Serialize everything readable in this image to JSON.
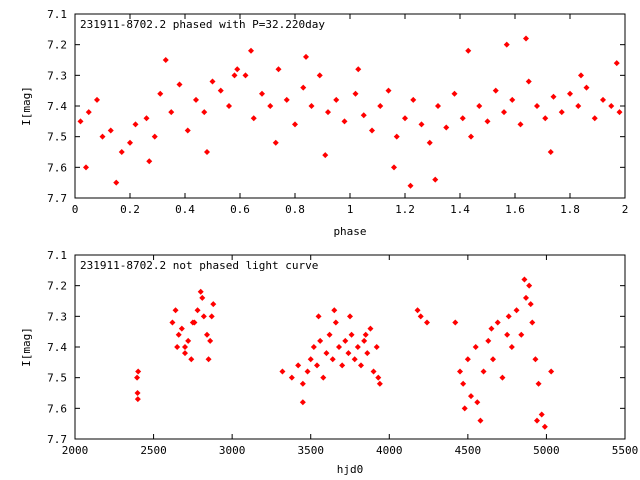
{
  "chart_data": [
    {
      "type": "scatter",
      "title": "231911-8702.2 phased with P=32.220day",
      "xlabel": "phase",
      "ylabel": "I[mag]",
      "xlim": [
        0,
        2
      ],
      "ylim": [
        7.1,
        7.7
      ],
      "y_inverted": true,
      "xticks": [
        0,
        0.2,
        0.4,
        0.6,
        0.8,
        1,
        1.2,
        1.4,
        1.6,
        1.8,
        2
      ],
      "xtick_labels": [
        "0",
        "0.2",
        "0.4",
        "0.6",
        "0.8",
        "1",
        "1.2",
        "1.4",
        "1.6",
        "1.8",
        "2"
      ],
      "yticks": [
        7.1,
        7.2,
        7.3,
        7.4,
        7.5,
        7.6,
        7.7
      ],
      "ytick_labels": [
        "7.1",
        "7.2",
        "7.3",
        "7.4",
        "7.5",
        "7.6",
        "7.7"
      ],
      "grid": false,
      "marker_color": "#ff0000",
      "series": [
        {
          "x": [
            0.02,
            0.05,
            0.08,
            0.1,
            0.13,
            0.17,
            0.2,
            0.22,
            0.26,
            0.29,
            0.31,
            0.35,
            0.38,
            0.41,
            0.44,
            0.47,
            0.5,
            0.53,
            0.56,
            0.59,
            0.62,
            0.65,
            0.68,
            0.71,
            0.74,
            0.77,
            0.8,
            0.83,
            0.86,
            0.89,
            0.92,
            0.95,
            0.98,
            1.02,
            1.05,
            1.08,
            1.11,
            1.14,
            1.17,
            1.2,
            1.23,
            1.26,
            1.29,
            1.32,
            1.35,
            1.38,
            1.41,
            1.44,
            1.47,
            1.5,
            1.53,
            1.56,
            1.59,
            1.62,
            1.65,
            1.68,
            1.71,
            1.74,
            1.77,
            1.8,
            1.83,
            1.86,
            1.89,
            1.92,
            1.95,
            1.98,
            0.04,
            0.15,
            0.27,
            0.33,
            0.48,
            0.58,
            0.64,
            0.73,
            0.84,
            0.91,
            1.03,
            1.16,
            1.22,
            1.31,
            1.43,
            1.57,
            1.64,
            1.73,
            1.84,
            1.97
          ],
          "y": [
            7.45,
            7.42,
            7.38,
            7.5,
            7.48,
            7.55,
            7.52,
            7.46,
            7.44,
            7.5,
            7.36,
            7.42,
            7.33,
            7.48,
            7.38,
            7.42,
            7.32,
            7.35,
            7.4,
            7.28,
            7.3,
            7.44,
            7.36,
            7.4,
            7.28,
            7.38,
            7.46,
            7.34,
            7.4,
            7.3,
            7.42,
            7.38,
            7.45,
            7.36,
            7.43,
            7.48,
            7.4,
            7.35,
            7.5,
            7.44,
            7.38,
            7.46,
            7.52,
            7.4,
            7.47,
            7.36,
            7.44,
            7.5,
            7.4,
            7.45,
            7.35,
            7.42,
            7.38,
            7.46,
            7.32,
            7.4,
            7.44,
            7.37,
            7.42,
            7.36,
            7.4,
            7.34,
            7.44,
            7.38,
            7.4,
            7.42,
            7.6,
            7.65,
            7.58,
            7.25,
            7.55,
            7.3,
            7.22,
            7.52,
            7.24,
            7.56,
            7.28,
            7.6,
            7.66,
            7.64,
            7.22,
            7.2,
            7.18,
            7.55,
            7.3,
            7.26
          ]
        }
      ]
    },
    {
      "type": "scatter",
      "title": "231911-8702.2 not phased light curve",
      "xlabel": "hjd0",
      "ylabel": "I[mag]",
      "xlim": [
        2000,
        5500
      ],
      "ylim": [
        7.1,
        7.7
      ],
      "y_inverted": true,
      "xticks": [
        2000,
        2500,
        3000,
        3500,
        4000,
        4500,
        5000,
        5500
      ],
      "xtick_labels": [
        "2000",
        "2500",
        "3000",
        "3500",
        "4000",
        "4500",
        "5000",
        "5500"
      ],
      "yticks": [
        7.1,
        7.2,
        7.3,
        7.4,
        7.5,
        7.6,
        7.7
      ],
      "ytick_labels": [
        "7.1",
        "7.2",
        "7.3",
        "7.4",
        "7.5",
        "7.6",
        "7.7"
      ],
      "grid": false,
      "marker_color": "#ff0000",
      "series": [
        {
          "x": [
            2395,
            2398,
            2400,
            2402,
            2620,
            2640,
            2660,
            2680,
            2700,
            2720,
            2740,
            2760,
            2780,
            2800,
            2820,
            2840,
            2860,
            2880,
            2650,
            2700,
            2750,
            2810,
            2850,
            2870,
            3320,
            3380,
            3420,
            3450,
            3480,
            3500,
            3520,
            3540,
            3560,
            3580,
            3600,
            3620,
            3640,
            3660,
            3680,
            3700,
            3720,
            3740,
            3760,
            3780,
            3800,
            3820,
            3840,
            3860,
            3880,
            3900,
            3920,
            3940,
            3450,
            3550,
            3650,
            3750,
            3850,
            3930,
            4180,
            4200,
            4240,
            4420,
            4450,
            4470,
            4500,
            4520,
            4550,
            4580,
            4600,
            4630,
            4660,
            4690,
            4720,
            4750,
            4780,
            4810,
            4840,
            4870,
            4890,
            4910,
            4930,
            4950,
            4970,
            4990,
            5030,
            4480,
            4560,
            4650,
            4760,
            4860,
            4900,
            4940
          ],
          "y": [
            7.5,
            7.55,
            7.57,
            7.48,
            7.32,
            7.28,
            7.36,
            7.34,
            7.4,
            7.38,
            7.44,
            7.32,
            7.28,
            7.22,
            7.3,
            7.36,
            7.38,
            7.26,
            7.4,
            7.42,
            7.32,
            7.24,
            7.44,
            7.3,
            7.48,
            7.5,
            7.46,
            7.52,
            7.48,
            7.44,
            7.4,
            7.46,
            7.38,
            7.5,
            7.42,
            7.36,
            7.44,
            7.32,
            7.4,
            7.46,
            7.38,
            7.42,
            7.36,
            7.44,
            7.4,
            7.46,
            7.38,
            7.42,
            7.34,
            7.48,
            7.4,
            7.52,
            7.58,
            7.3,
            7.28,
            7.3,
            7.36,
            7.5,
            7.28,
            7.3,
            7.32,
            7.32,
            7.48,
            7.52,
            7.44,
            7.56,
            7.4,
            7.64,
            7.48,
            7.38,
            7.44,
            7.32,
            7.5,
            7.36,
            7.4,
            7.28,
            7.36,
            7.24,
            7.2,
            7.32,
            7.44,
            7.52,
            7.62,
            7.66,
            7.48,
            7.6,
            7.58,
            7.34,
            7.3,
            7.18,
            7.26,
            7.64
          ]
        }
      ]
    }
  ]
}
